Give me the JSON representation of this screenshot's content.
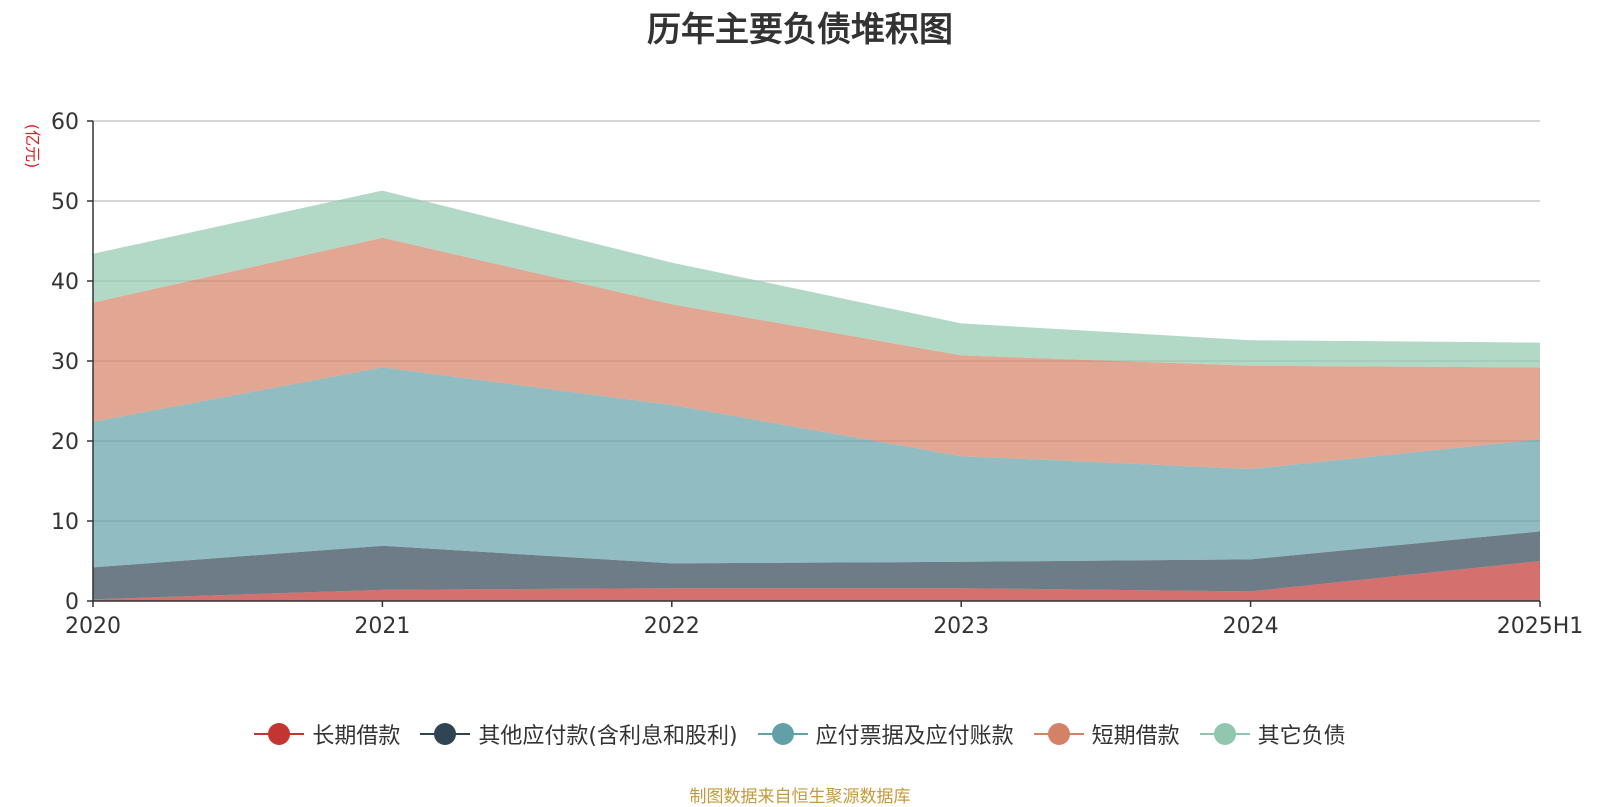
{
  "title": "历年主要负债堆积图",
  "source": "制图数据来自恒生聚源数据库",
  "chart_data": {
    "type": "area",
    "stacked": true,
    "title": "历年主要负债堆积图",
    "ylabel": "(亿元)",
    "xlabel": "",
    "categories": [
      "2020",
      "2021",
      "2022",
      "2023",
      "2024",
      "2025H1"
    ],
    "ylim": [
      0,
      60
    ],
    "yticks": [
      0,
      10,
      20,
      30,
      40,
      50,
      60
    ],
    "grid": true,
    "legend_position": "bottom",
    "series": [
      {
        "name": "长期借款",
        "color": "#c23531",
        "values": [
          0.2,
          1.4,
          1.6,
          1.6,
          1.2,
          5.0
        ]
      },
      {
        "name": "其他应付款(含利息和股利)",
        "color": "#2f4554",
        "values": [
          4.0,
          5.5,
          3.1,
          3.3,
          4.0,
          3.7
        ]
      },
      {
        "name": "应付票据及应付账款",
        "color": "#61a0a8",
        "values": [
          18.2,
          22.3,
          19.8,
          13.2,
          11.3,
          11.5
        ]
      },
      {
        "name": "短期借款",
        "color": "#d48265",
        "values": [
          14.9,
          16.2,
          12.6,
          12.6,
          12.9,
          9.0
        ]
      },
      {
        "name": "其它负债",
        "color": "#91c7ae",
        "values": [
          6.1,
          5.9,
          5.2,
          4.0,
          3.2,
          3.1
        ]
      }
    ]
  }
}
